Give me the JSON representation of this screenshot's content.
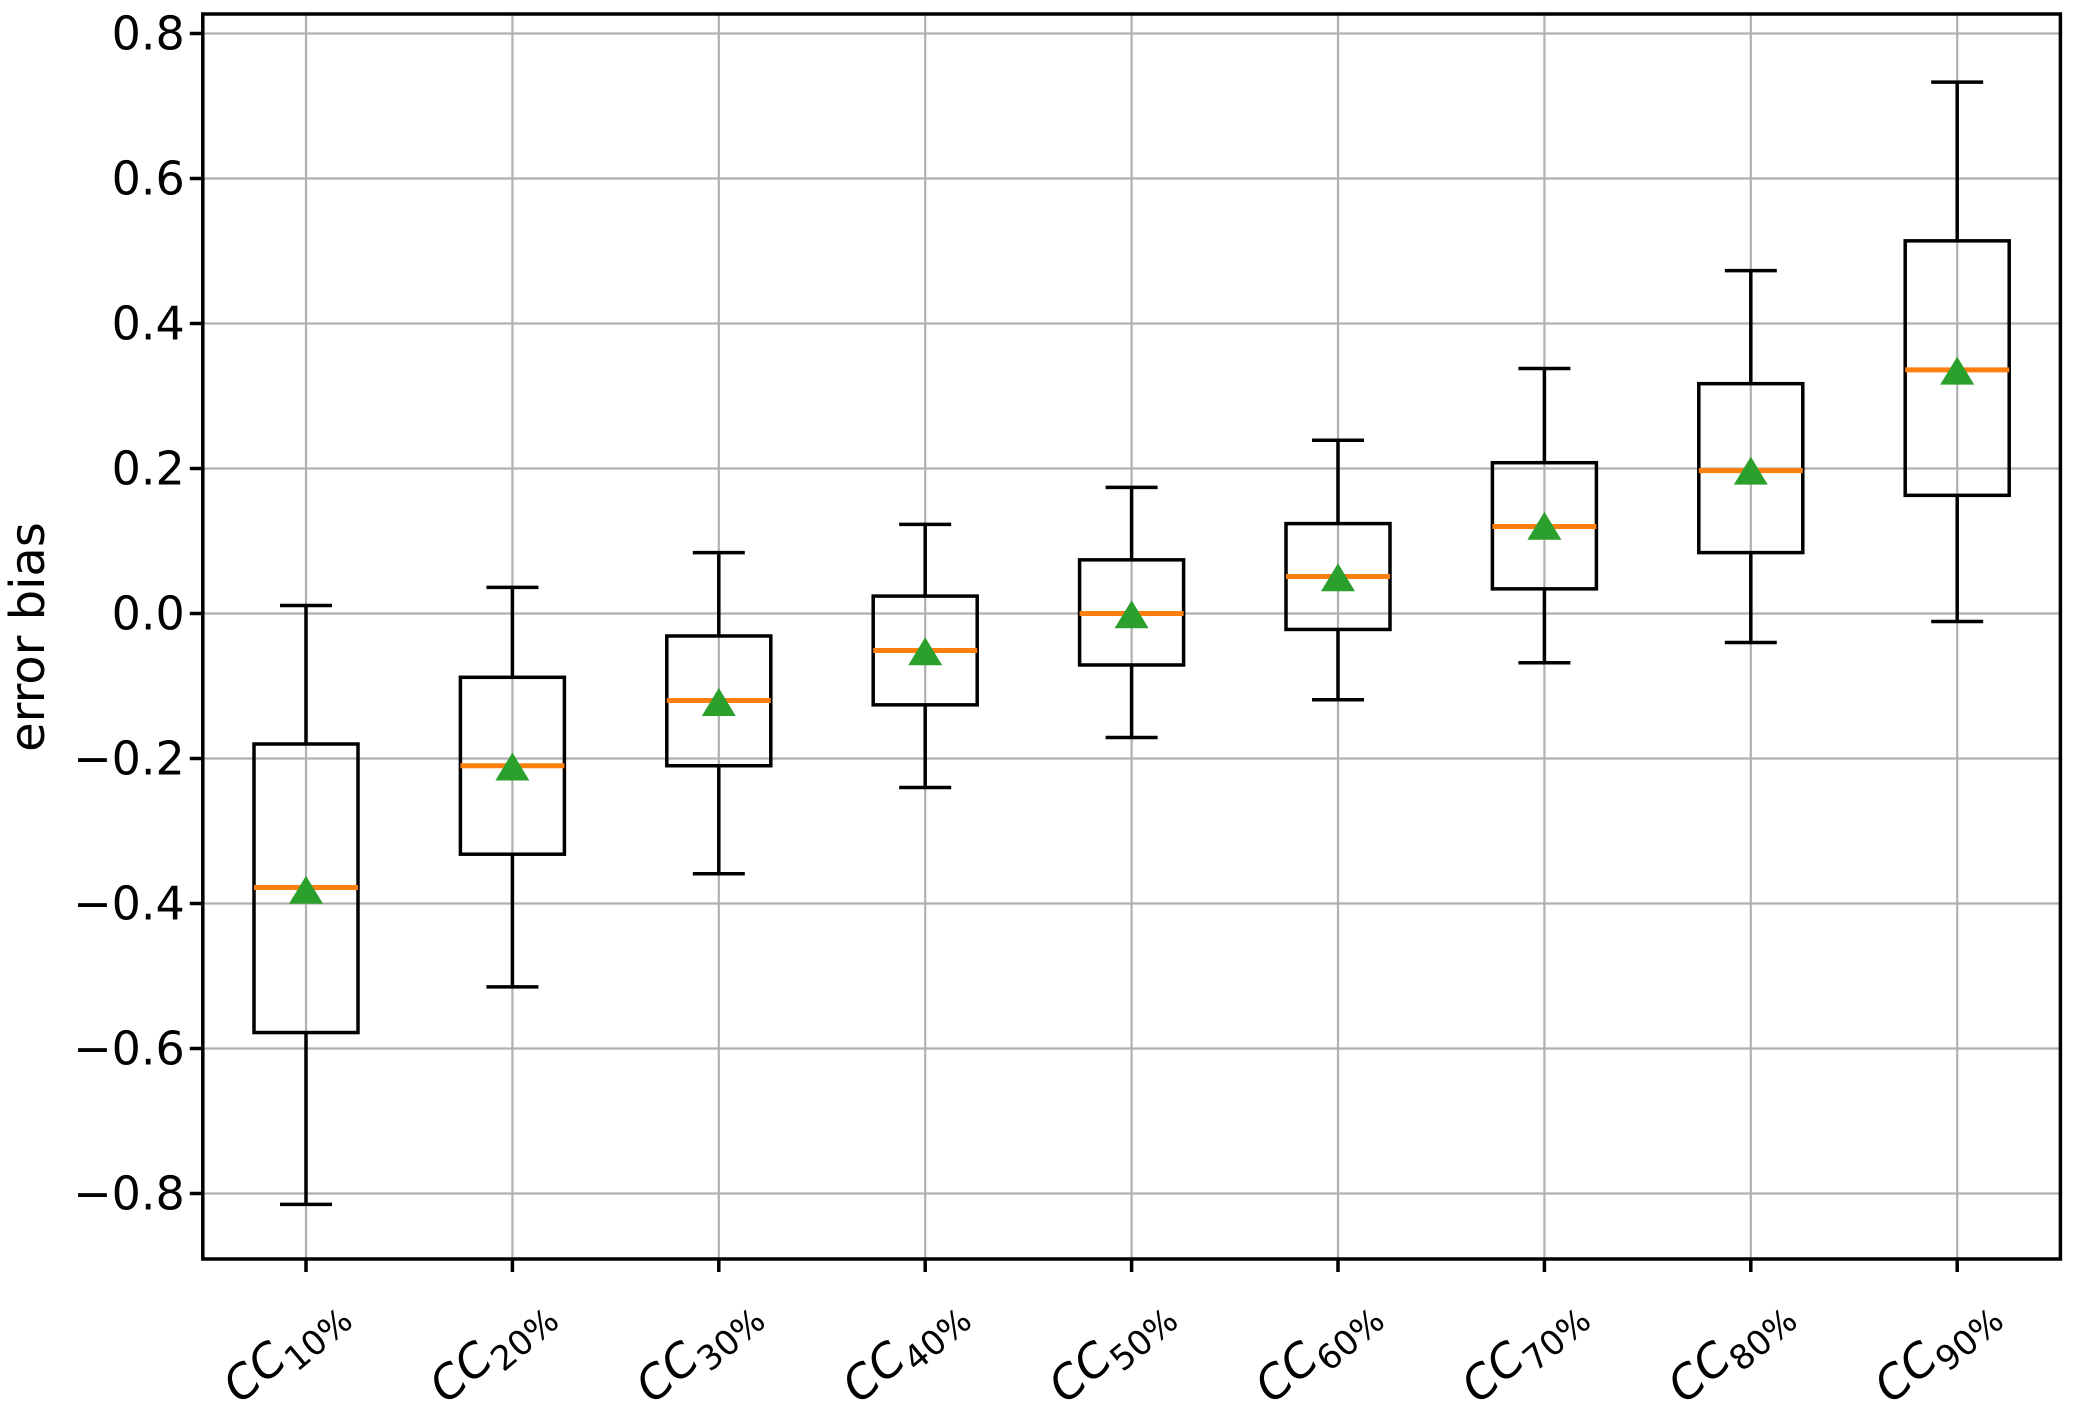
{
  "chart_data": {
    "type": "box",
    "title": "",
    "xlabel": "",
    "ylabel": "error bias",
    "ylim": [
      -0.89,
      0.83
    ],
    "grid": true,
    "legend": false,
    "yticks": [
      0.8,
      0.6,
      0.4,
      0.2,
      0.0,
      -0.2,
      -0.4,
      -0.6,
      -0.8
    ],
    "ytick_labels": [
      "0.8",
      "0.6",
      "0.4",
      "0.2",
      "0.0",
      "−0.2",
      "−0.4",
      "−0.6",
      "−0.8"
    ],
    "categories": [
      {
        "base": "CC",
        "sub": "10%"
      },
      {
        "base": "CC",
        "sub": "20%"
      },
      {
        "base": "CC",
        "sub": "30%"
      },
      {
        "base": "CC",
        "sub": "40%"
      },
      {
        "base": "CC",
        "sub": "50%"
      },
      {
        "base": "CC",
        "sub": "60%"
      },
      {
        "base": "CC",
        "sub": "70%"
      },
      {
        "base": "CC",
        "sub": "80%"
      },
      {
        "base": "CC",
        "sub": "90%"
      }
    ],
    "boxes": [
      {
        "category": "CC10%",
        "whisker_low": -0.815,
        "q1": -0.578,
        "median": -0.378,
        "mean": -0.381,
        "q3": -0.18,
        "whisker_high": 0.011
      },
      {
        "category": "CC20%",
        "whisker_low": -0.515,
        "q1": -0.332,
        "median": -0.21,
        "mean": -0.211,
        "q3": -0.088,
        "whisker_high": 0.036
      },
      {
        "category": "CC30%",
        "whisker_low": -0.359,
        "q1": -0.21,
        "median": -0.12,
        "mean": -0.122,
        "q3": -0.031,
        "whisker_high": 0.084
      },
      {
        "category": "CC40%",
        "whisker_low": -0.24,
        "q1": -0.126,
        "median": -0.051,
        "mean": -0.052,
        "q3": 0.024,
        "whisker_high": 0.123
      },
      {
        "category": "CC50%",
        "whisker_low": -0.171,
        "q1": -0.071,
        "median": 0.0,
        "mean": -0.001,
        "q3": 0.074,
        "whisker_high": 0.174
      },
      {
        "category": "CC60%",
        "whisker_low": -0.119,
        "q1": -0.022,
        "median": 0.051,
        "mean": 0.05,
        "q3": 0.124,
        "whisker_high": 0.239
      },
      {
        "category": "CC70%",
        "whisker_low": -0.068,
        "q1": 0.034,
        "median": 0.12,
        "mean": 0.121,
        "q3": 0.208,
        "whisker_high": 0.338
      },
      {
        "category": "CC80%",
        "whisker_low": -0.04,
        "q1": 0.084,
        "median": 0.197,
        "mean": 0.197,
        "q3": 0.317,
        "whisker_high": 0.473
      },
      {
        "category": "CC90%",
        "whisker_low": -0.011,
        "q1": 0.163,
        "median": 0.336,
        "mean": 0.335,
        "q3": 0.514,
        "whisker_high": 0.733
      }
    ],
    "colors": {
      "median": "#ff7f0e",
      "mean_marker": "#2ca02c",
      "box_edge": "#000000",
      "grid": "#b0b0b0",
      "background": "#ffffff"
    }
  }
}
